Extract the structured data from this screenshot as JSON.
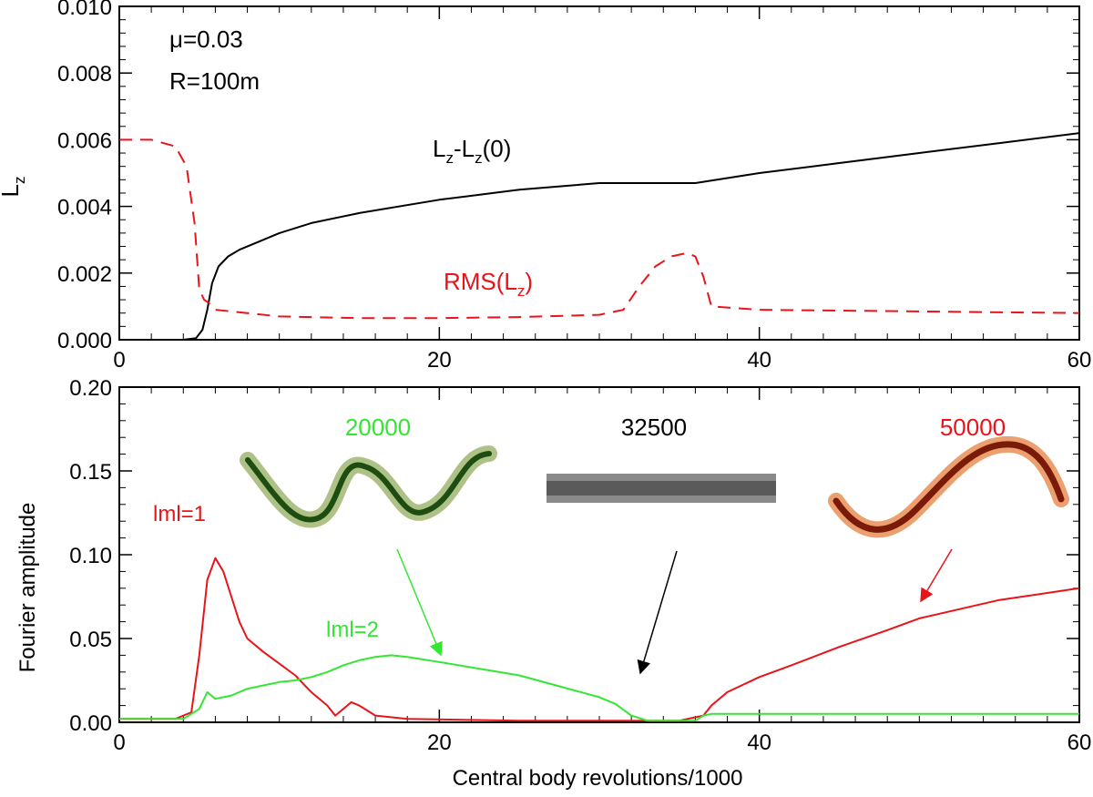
{
  "chart_data": [
    {
      "type": "line",
      "panel": "top",
      "title": "",
      "xlabel": "",
      "ylabel": "L",
      "ylabel_sub": "z",
      "xlim": [
        0,
        60
      ],
      "ylim": [
        0,
        0.01
      ],
      "x_ticks": [
        0,
        20,
        40,
        60
      ],
      "x_tick_labels": [
        "0",
        "20",
        "40",
        "60"
      ],
      "y_ticks": [
        0,
        0.002,
        0.004,
        0.006,
        0.008,
        0.01
      ],
      "y_tick_labels": [
        "0.000",
        "0.002",
        "0.004",
        "0.006",
        "0.008",
        "0.010"
      ],
      "annotations": {
        "mu": "μ=0.03",
        "radius": "R=100m"
      },
      "series": [
        {
          "name": "Lz-Lz(0)",
          "label": {
            "base": "L",
            "sub1": "z",
            "mid": "-L",
            "sub2": "z",
            "tail": "(0)"
          },
          "color": "#000000",
          "dash": "solid",
          "x": [
            0,
            4,
            4.8,
            5.2,
            5.5,
            5.8,
            6.2,
            6.8,
            7.5,
            8.5,
            10,
            12,
            15,
            20,
            25,
            30,
            33,
            36,
            40,
            45,
            50,
            55,
            60
          ],
          "y": [
            0,
            0,
            5e-05,
            0.0003,
            0.0009,
            0.0017,
            0.0022,
            0.0025,
            0.0027,
            0.0029,
            0.0032,
            0.0035,
            0.0038,
            0.0042,
            0.0045,
            0.0047,
            0.0047,
            0.0047,
            0.005,
            0.0053,
            0.0056,
            0.0059,
            0.0062
          ]
        },
        {
          "name": "RMS(Lz)",
          "label": {
            "base": "RMS(L",
            "sub1": "z",
            "tail": ")"
          },
          "color": "#e8141a",
          "dash": "dashed",
          "x": [
            0,
            2,
            3.5,
            4.2,
            4.7,
            5.0,
            5.3,
            5.6,
            6,
            8,
            10,
            15,
            20,
            25,
            30,
            31.5,
            32.5,
            33.5,
            34.5,
            35.5,
            36,
            36.5,
            37,
            40,
            50,
            60
          ],
          "y": [
            0.006,
            0.006,
            0.0058,
            0.0052,
            0.0035,
            0.0015,
            0.0012,
            0.0011,
            0.0009,
            0.0008,
            0.0007,
            0.00065,
            0.00065,
            0.00068,
            0.00075,
            0.0009,
            0.0016,
            0.0022,
            0.0025,
            0.0026,
            0.0025,
            0.0019,
            0.001,
            0.0009,
            0.00085,
            0.0008
          ]
        }
      ]
    },
    {
      "type": "line",
      "panel": "bottom",
      "title": "",
      "xlabel": "Central body revolutions/1000",
      "ylabel": "Fourier amplitude",
      "xlim": [
        0,
        60
      ],
      "ylim": [
        0,
        0.2
      ],
      "x_ticks": [
        0,
        20,
        40,
        60
      ],
      "x_tick_labels": [
        "0",
        "20",
        "40",
        "60"
      ],
      "y_ticks": [
        0,
        0.05,
        0.1,
        0.15,
        0.2
      ],
      "y_tick_labels": [
        "0.00",
        "0.05",
        "0.10",
        "0.15",
        "0.20"
      ],
      "series": [
        {
          "name": "lml=1",
          "color": "#e8141a",
          "x": [
            0,
            3.5,
            4.5,
            5.0,
            5.5,
            6.0,
            6.5,
            7.0,
            7.5,
            8.0,
            9.0,
            10.0,
            11.0,
            12.0,
            13.0,
            13.5,
            14.0,
            14.5,
            15.0,
            16.0,
            18.0,
            25.0,
            35.0,
            36.5,
            37.0,
            38.0,
            40.0,
            42.0,
            45.0,
            48.0,
            50.0,
            55.0,
            60.0
          ],
          "y": [
            0.002,
            0.002,
            0.006,
            0.04,
            0.085,
            0.098,
            0.09,
            0.075,
            0.06,
            0.05,
            0.042,
            0.035,
            0.028,
            0.018,
            0.01,
            0.004,
            0.008,
            0.012,
            0.01,
            0.004,
            0.002,
            0.001,
            0.001,
            0.004,
            0.01,
            0.018,
            0.027,
            0.034,
            0.045,
            0.055,
            0.062,
            0.073,
            0.08
          ]
        },
        {
          "name": "lml=2",
          "color": "#33e633",
          "x": [
            0,
            4.0,
            5.0,
            5.5,
            6.0,
            7.0,
            8.0,
            9.0,
            10.0,
            11.0,
            12.0,
            13.0,
            14.0,
            15.0,
            16.0,
            17.0,
            18.0,
            20.0,
            25.0,
            30.0,
            31.0,
            32.0,
            33.0,
            36.0,
            36.5,
            37.0,
            40.0,
            50.0,
            60.0
          ],
          "y": [
            0.002,
            0.002,
            0.008,
            0.018,
            0.014,
            0.016,
            0.02,
            0.022,
            0.024,
            0.025,
            0.027,
            0.03,
            0.034,
            0.037,
            0.039,
            0.04,
            0.039,
            0.036,
            0.028,
            0.015,
            0.011,
            0.004,
            0.001,
            0.001,
            0.004,
            0.005,
            0.005,
            0.005,
            0.005
          ]
        }
      ],
      "annotations": {
        "m1_label": "lml=1",
        "m2_label": "lml=2",
        "snapshots": [
          {
            "time_label": "20000",
            "color": "#33e633",
            "arrow_color": "#33e633",
            "arrow_target": [
              17,
              0.039
            ]
          },
          {
            "time_label": "32500",
            "color": "#000000",
            "arrow_color": "#000000",
            "arrow_target": [
              33,
              0.004
            ]
          },
          {
            "time_label": "50000",
            "color": "#e8141a",
            "arrow_color": "#e8141a",
            "arrow_target": [
              50,
              0.065
            ]
          }
        ]
      }
    }
  ]
}
